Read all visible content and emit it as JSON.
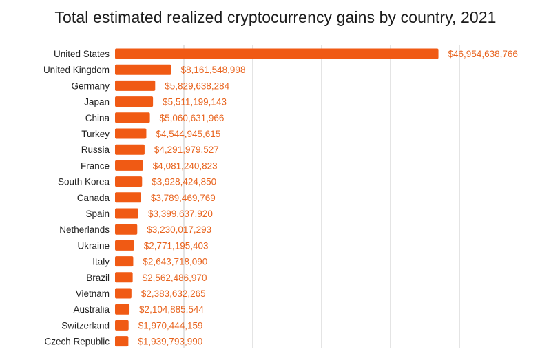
{
  "chart_data": {
    "type": "bar",
    "orientation": "horizontal",
    "title": "Total estimated realized cryptocurrency gains by country, 2021",
    "xlabel": "",
    "ylabel": "",
    "categories": [
      "United States",
      "United Kingdom",
      "Germany",
      "Japan",
      "China",
      "Turkey",
      "Russia",
      "France",
      "South Korea",
      "Canada",
      "Spain",
      "Netherlands",
      "Ukraine",
      "Italy",
      "Brazil",
      "Vietnam",
      "Australia",
      "Switzerland",
      "Czech Republic"
    ],
    "values": [
      46954638766,
      8161548998,
      5829638284,
      5511199143,
      5060631966,
      4544945615,
      4291979527,
      4081240823,
      3928424850,
      3789469769,
      3399637920,
      3230017293,
      2771195403,
      2643718090,
      2562486970,
      2383632265,
      2104885544,
      1970444159,
      1939793990
    ],
    "value_labels": [
      "$46,954,638,766",
      "$8,161,548,998",
      "$5,829,638,284",
      "$5,511,199,143",
      "$5,060,631,966",
      "$4,544,945,615",
      "$4,291,979,527",
      "$4,081,240,823",
      "$3,928,424,850",
      "$3,789,469,769",
      "$3,399,637,920",
      "$3,230,017,293",
      "$2,771,195,403",
      "$2,643,718,090",
      "$2,562,486,970",
      "$2,383,632,265",
      "$2,104,885,544",
      "$1,970,444,159",
      "$1,939,793,990"
    ],
    "xlim": [
      0,
      50000000000
    ],
    "gridlines": [
      0,
      10000000000,
      20000000000,
      30000000000,
      40000000000,
      50000000000
    ],
    "grid": true,
    "legend": "none",
    "colors": {
      "bar": "#f05a14",
      "label": "#e8641f",
      "grid": "#c8c8c8",
      "text": "#222222"
    }
  }
}
